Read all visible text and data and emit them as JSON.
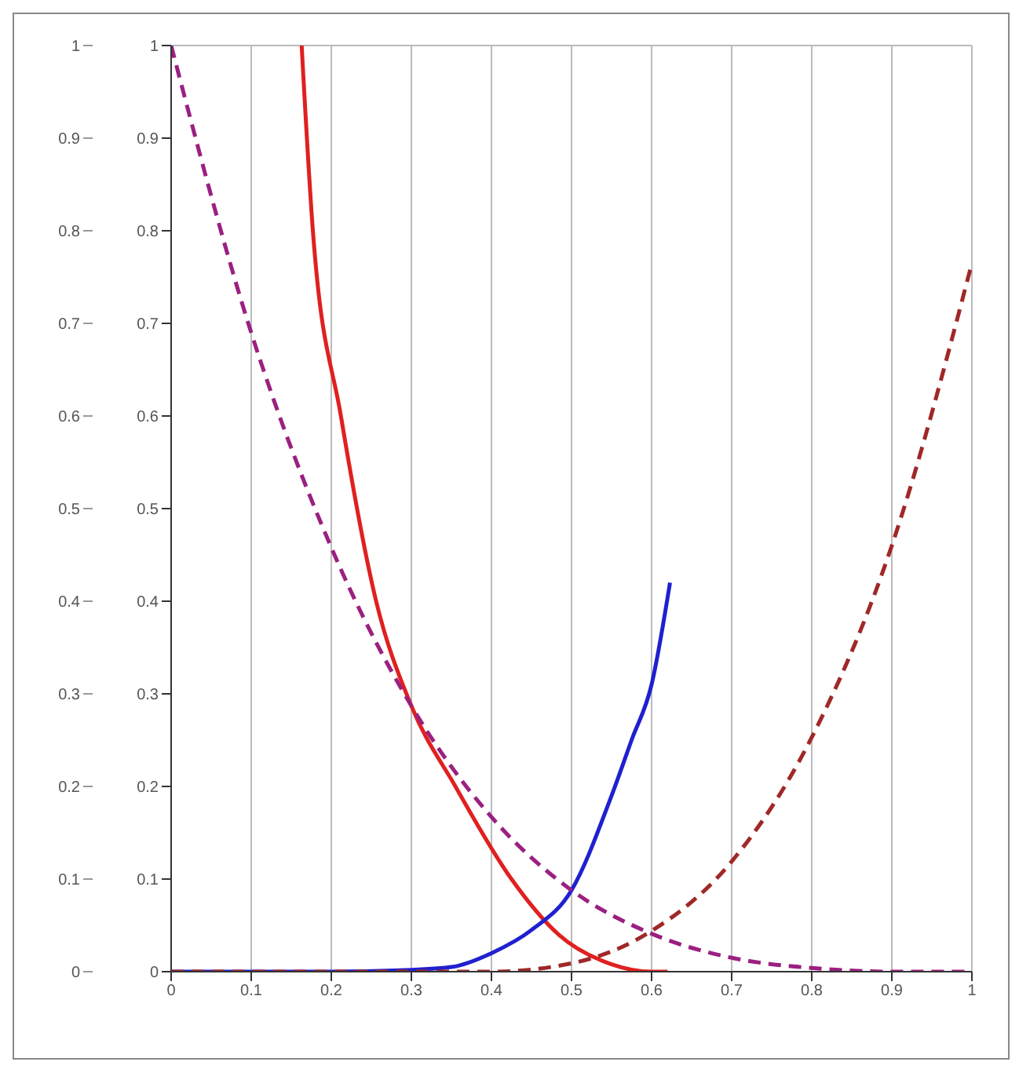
{
  "chart_data": {
    "type": "line",
    "xlim": [
      0,
      1
    ],
    "xticks": [
      0,
      0.1,
      0.2,
      0.3,
      0.4,
      0.5,
      0.6,
      0.7,
      0.8,
      0.9,
      1
    ],
    "ylim": [
      0,
      1
    ],
    "yticks": [
      0,
      0.1,
      0.2,
      0.3,
      0.4,
      0.5,
      0.6,
      0.7,
      0.8,
      0.9,
      1
    ],
    "y2lim": [
      0,
      1
    ],
    "y2ticks": [
      0,
      0.1,
      0.2,
      0.3,
      0.4,
      0.5,
      0.6,
      0.7,
      0.8,
      0.9,
      1
    ],
    "grid": true,
    "legend": false,
    "marker": "none",
    "series": [
      {
        "color": "#e02020",
        "line_style": "solid",
        "x": [
          0.163,
          0.177,
          0.212,
          0.256,
          0.3,
          0.355,
          0.425,
          0.484,
          0.55,
          0.6,
          0.62
        ],
        "values": [
          1,
          0.8,
          0.6,
          0.4,
          0.287,
          0.2,
          0.1,
          0.04,
          0.008,
          0,
          0
        ]
      },
      {
        "color": "#2020d0",
        "line_style": "solid",
        "x": [
          0,
          0.1,
          0.2,
          0.3,
          0.35,
          0.4,
          0.45,
          0.5,
          0.55,
          0.575,
          0.6,
          0.623
        ],
        "values": [
          0,
          0,
          0,
          0.002,
          0.005,
          0.02,
          0.045,
          0.088,
          0.19,
          0.25,
          0.31,
          0.42
        ]
      },
      {
        "color": "#9b2080",
        "line_style": "dashed",
        "x": [
          0,
          0.1,
          0.2,
          0.3,
          0.4,
          0.5,
          0.6,
          0.7,
          0.8,
          0.9,
          1
        ],
        "values": [
          1,
          0.69,
          0.458,
          0.287,
          0.167,
          0.088,
          0.041,
          0.015,
          0.004,
          0,
          0
        ]
      },
      {
        "color": "#a02828",
        "line_style": "dashed",
        "x": [
          0,
          0.1,
          0.2,
          0.3,
          0.35,
          0.4,
          0.5,
          0.6,
          0.7,
          0.8,
          0.9,
          1
        ],
        "values": [
          0,
          0,
          0,
          0,
          0,
          0,
          0.009,
          0.044,
          0.119,
          0.253,
          0.46,
          0.765
        ]
      }
    ]
  }
}
